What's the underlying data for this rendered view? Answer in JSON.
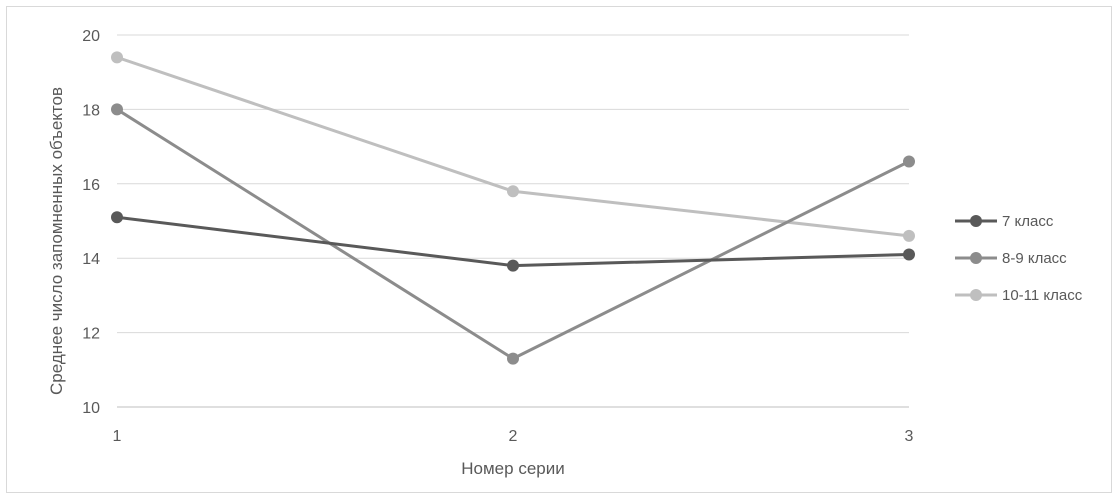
{
  "chart_data": {
    "type": "line",
    "title": "",
    "xlabel": "Номер серии",
    "ylabel": "Среднее число запомненных объектов",
    "categories": [
      "1",
      "2",
      "3"
    ],
    "ylim": [
      10,
      20
    ],
    "yticks": [
      10,
      12,
      14,
      16,
      18,
      20
    ],
    "grid": true,
    "legend_position": "right",
    "series": [
      {
        "name": "7 класс",
        "values": [
          15.1,
          13.8,
          14.1
        ],
        "color": "#595959"
      },
      {
        "name": "8-9 класс",
        "values": [
          18.0,
          11.3,
          16.6
        ],
        "color": "#8c8c8c"
      },
      {
        "name": "10-11 класс",
        "values": [
          19.4,
          15.8,
          14.6
        ],
        "color": "#bfbfbf"
      }
    ]
  }
}
